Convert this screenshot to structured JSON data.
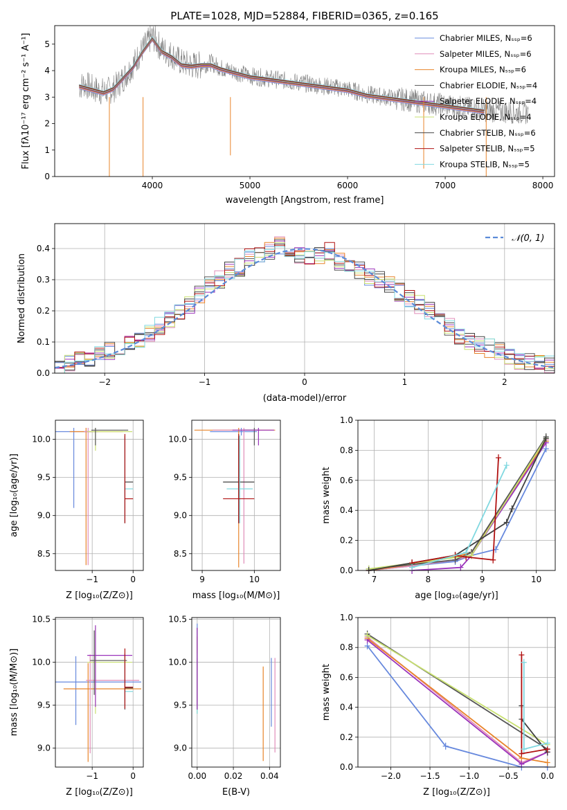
{
  "figure_title": "PLATE=1028, MJD=52884, FIBERID=0365, z=0.165",
  "colors": {
    "chabrier_miles": "#6688dd",
    "salpeter_miles": "#e08cb8",
    "kroupa_miles": "#e8842a",
    "chabrier_elodie": "#555555",
    "salpeter_elodie": "#9a33bb",
    "kroupa_elodie": "#c8e070",
    "chabrier_stelib": "#404040",
    "salpeter_stelib": "#b01010",
    "kroupa_stelib": "#80d8e0",
    "observed": "#808080",
    "gaussian": "#5b8bd8"
  },
  "chart_data": [
    {
      "id": "spectrum",
      "type": "line",
      "title": "PLATE=1028, MJD=52884, FIBERID=0365, z=0.165",
      "xlabel": "wavelength [Angstrom, rest frame]",
      "ylabel": "Flux [f_λ 10^-17 erg cm^-2 s^-1 A^-1]",
      "xlim": [
        3000,
        8120
      ],
      "ylim": [
        0,
        5.7
      ],
      "xticks": [
        4000,
        5000,
        6000,
        7000,
        8000
      ],
      "yticks": [
        0,
        1,
        2,
        3,
        4,
        5
      ],
      "legend_placement": "right",
      "legend": [
        "Chabrier MILES, N_SSP=6",
        "Salpeter MILES, N_SSP=6",
        "Kroupa MILES, N_SSP=6",
        "Chabrier ELODIE, N_SSP=4",
        "Salpeter ELODIE, N_SSP=4",
        "Kroupa ELODIE, N_SSP=4",
        "Chabrier STELIB, N_SSP=6",
        "Salpeter STELIB, N_SSP=5",
        "Kroupa STELIB, N_SSP=5"
      ],
      "observed_x": [
        3250,
        3300,
        3400,
        3500,
        3600,
        3700,
        3800,
        3900,
        4000,
        4100,
        4200,
        4300,
        4400,
        4500,
        4600,
        4700,
        4800,
        4900,
        5000,
        5200,
        5400,
        5600,
        5800,
        6000,
        6200,
        6400,
        6600,
        6800,
        7000,
        7200,
        7400,
        7600,
        7850
      ],
      "observed_y": [
        3.4,
        3.5,
        3.3,
        3.2,
        3.3,
        3.7,
        4.2,
        4.8,
        5.3,
        4.8,
        4.6,
        4.3,
        4.2,
        4.2,
        4.3,
        4.1,
        4.0,
        3.9,
        3.8,
        3.7,
        3.6,
        3.5,
        3.4,
        3.3,
        3.1,
        3.0,
        2.9,
        2.8,
        2.7,
        2.6,
        2.5,
        2.45,
        2.4
      ],
      "model_x": [
        3250,
        3300,
        3400,
        3500,
        3600,
        3700,
        3800,
        3900,
        4000,
        4100,
        4200,
        4300,
        4400,
        4500,
        4600,
        4700,
        4800,
        4900,
        5000,
        5200,
        5400,
        5600,
        5800,
        6000,
        6200,
        6400,
        6600,
        6800,
        7000,
        7200,
        7400
      ],
      "model_y": [
        3.4,
        3.35,
        3.25,
        3.15,
        3.3,
        3.7,
        4.1,
        4.7,
        5.2,
        4.7,
        4.5,
        4.2,
        4.15,
        4.2,
        4.2,
        4.05,
        3.95,
        3.85,
        3.75,
        3.65,
        3.55,
        3.45,
        3.35,
        3.25,
        3.05,
        2.95,
        2.85,
        2.75,
        2.65,
        2.55,
        2.45
      ]
    },
    {
      "id": "residuals",
      "type": "bar",
      "xlabel": "(data-model)/error",
      "ylabel": "Normed distribution",
      "xlim": [
        -2.5,
        2.5
      ],
      "ylim": [
        0,
        0.48
      ],
      "xticks": [
        -2,
        -1,
        0,
        1,
        2
      ],
      "yticks": [
        0.0,
        0.1,
        0.2,
        0.3,
        0.4
      ],
      "legend_placement": "top-right",
      "gaussian_label": "𝒩(0, 1)",
      "bin_width": 0.1,
      "x": [
        -2.5,
        -2.4,
        -2.3,
        -2.2,
        -2.1,
        -2.0,
        -1.9,
        -1.8,
        -1.7,
        -1.6,
        -1.5,
        -1.4,
        -1.3,
        -1.2,
        -1.1,
        -1.0,
        -0.9,
        -0.8,
        -0.7,
        -0.6,
        -0.5,
        -0.4,
        -0.3,
        -0.2,
        -0.1,
        0.0,
        0.1,
        0.2,
        0.3,
        0.4,
        0.5,
        0.6,
        0.7,
        0.8,
        0.9,
        1.0,
        1.1,
        1.2,
        1.3,
        1.4,
        1.5,
        1.6,
        1.7,
        1.8,
        1.9,
        2.0,
        2.1,
        2.2,
        2.3,
        2.4
      ],
      "y": [
        0.025,
        0.03,
        0.04,
        0.05,
        0.06,
        0.07,
        0.08,
        0.09,
        0.11,
        0.13,
        0.15,
        0.17,
        0.19,
        0.22,
        0.25,
        0.28,
        0.3,
        0.33,
        0.34,
        0.37,
        0.38,
        0.39,
        0.41,
        0.4,
        0.38,
        0.37,
        0.38,
        0.39,
        0.36,
        0.34,
        0.33,
        0.31,
        0.3,
        0.28,
        0.26,
        0.24,
        0.22,
        0.2,
        0.17,
        0.15,
        0.12,
        0.1,
        0.09,
        0.08,
        0.07,
        0.05,
        0.04,
        0.035,
        0.03,
        0.03
      ]
    },
    {
      "id": "age-vs-Z",
      "type": "scatter",
      "xlabel": "Z [log10(Z/Z⊙)]",
      "ylabel": "age [log10(age/yr)]",
      "xlim": [
        -1.9,
        0.25
      ],
      "ylim": [
        8.28,
        10.25
      ],
      "xticks": [
        -1,
        0
      ],
      "yticks": [
        8.5,
        9.0,
        9.5,
        10.0
      ],
      "points": [
        {
          "x": -1.45,
          "y": 10.1,
          "xerr": [
            0.5,
            0.6
          ],
          "yerr": [
            1.0,
            0.05
          ],
          "series": "chabrier_miles"
        },
        {
          "x": -1.15,
          "y": 10.1,
          "xerr": [
            0.4,
            0.9
          ],
          "yerr": [
            1.75,
            0.05
          ],
          "series": "kroupa_miles"
        },
        {
          "x": -1.1,
          "y": 10.1,
          "xerr": [
            0.1,
            0.1
          ],
          "yerr": [
            1.75,
            0.05
          ],
          "series": "salpeter_miles"
        },
        {
          "x": -0.92,
          "y": 10.1,
          "xerr": [
            0.2,
            0.9
          ],
          "yerr": [
            0.25,
            0.05
          ],
          "series": "kroupa_elodie"
        },
        {
          "x": -0.92,
          "y": 10.12,
          "xerr": [
            0.1,
            0.8
          ],
          "yerr": [
            0.2,
            0.03
          ],
          "series": "chabrier_elodie"
        },
        {
          "x": -0.2,
          "y": 9.44,
          "xerr": [
            0.0,
            0.2
          ],
          "yerr": [
            0.54,
            0.6
          ],
          "series": "chabrier_stelib"
        },
        {
          "x": -0.2,
          "y": 9.35,
          "xerr": [
            0.0,
            0.2
          ],
          "yerr": [
            0.45,
            0.7
          ],
          "series": "kroupa_stelib"
        },
        {
          "x": -0.2,
          "y": 9.22,
          "xerr": [
            0.0,
            0.2
          ],
          "yerr": [
            0.32,
            0.85
          ],
          "series": "salpeter_stelib"
        }
      ]
    },
    {
      "id": "age-vs-mass",
      "type": "scatter",
      "xlabel": "mass [log10(M/M⊙)]",
      "ylabel": "",
      "xlim": [
        8.8,
        10.5
      ],
      "ylim": [
        8.28,
        10.25
      ],
      "xticks": [
        9,
        10
      ],
      "yticks": [
        8.5,
        9.0,
        9.5,
        10.0
      ],
      "points": [
        {
          "x": 9.75,
          "y": 10.1,
          "xerr": [
            0.6,
            0.3
          ],
          "yerr": [
            0.05,
            0.05
          ],
          "series": "chabrier_miles"
        },
        {
          "x": 9.7,
          "y": 10.12,
          "xerr": [
            0.85,
            0.7
          ],
          "yerr": [
            1.8,
            0.03
          ],
          "series": "kroupa_miles"
        },
        {
          "x": 9.8,
          "y": 10.12,
          "xerr": [
            0.6,
            0.3
          ],
          "yerr": [
            1.75,
            0.03
          ],
          "series": "salpeter_miles"
        },
        {
          "x": 10.0,
          "y": 10.12,
          "xerr": [
            0.2,
            0.1
          ],
          "yerr": [
            0.2,
            0.03
          ],
          "series": "chabrier_elodie"
        },
        {
          "x": 10.08,
          "y": 10.12,
          "xerr": [
            0.5,
            0.3
          ],
          "yerr": [
            0.2,
            0.03
          ],
          "series": "salpeter_elodie"
        },
        {
          "x": 9.7,
          "y": 9.44,
          "xerr": [
            0.3,
            0.3
          ],
          "yerr": [
            0.54,
            0.6
          ],
          "series": "chabrier_stelib"
        },
        {
          "x": 9.72,
          "y": 9.35,
          "xerr": [
            0.25,
            0.25
          ],
          "yerr": [
            0.45,
            0.7
          ],
          "series": "kroupa_stelib"
        },
        {
          "x": 9.7,
          "y": 9.22,
          "xerr": [
            0.3,
            0.3
          ],
          "yerr": [
            0.32,
            0.85
          ],
          "series": "salpeter_stelib"
        }
      ]
    },
    {
      "id": "massweight-vs-age",
      "type": "line",
      "xlabel": "age [log10(age/yr)]",
      "ylabel": "mass weight",
      "xlim": [
        6.7,
        10.35
      ],
      "ylim": [
        0,
        1.0
      ],
      "xticks": [
        7,
        8,
        9,
        10
      ],
      "yticks": [
        0.0,
        0.2,
        0.4,
        0.6,
        0.8,
        1.0
      ],
      "series": [
        {
          "key": "chabrier_miles",
          "x": [
            6.9,
            7.7,
            8.5,
            8.8,
            9.25,
            10.18
          ],
          "y": [
            0.0,
            0.03,
            0.06,
            0.1,
            0.14,
            0.81
          ]
        },
        {
          "key": "salpeter_miles",
          "x": [
            6.9,
            7.7,
            8.5,
            8.8,
            10.18
          ],
          "y": [
            0.0,
            0.03,
            0.07,
            0.1,
            0.87
          ]
        },
        {
          "key": "kroupa_miles",
          "x": [
            6.9,
            7.7,
            8.5,
            8.8,
            10.18
          ],
          "y": [
            0.0,
            0.04,
            0.09,
            0.12,
            0.86
          ]
        },
        {
          "key": "chabrier_elodie",
          "x": [
            6.9,
            8.5,
            8.8,
            10.18
          ],
          "y": [
            0.01,
            0.07,
            0.12,
            0.89
          ]
        },
        {
          "key": "salpeter_elodie",
          "x": [
            7.7,
            8.6,
            8.8,
            10.18
          ],
          "y": [
            0.0,
            0.02,
            0.1,
            0.85
          ]
        },
        {
          "key": "kroupa_elodie",
          "x": [
            6.9,
            8.8,
            10.18
          ],
          "y": [
            0.01,
            0.1,
            0.88
          ]
        },
        {
          "key": "chabrier_stelib",
          "x": [
            6.9,
            7.7,
            8.5,
            9.45,
            9.55,
            10.18
          ],
          "y": [
            0.0,
            0.05,
            0.1,
            0.32,
            0.41,
            0.88
          ]
        },
        {
          "key": "salpeter_stelib",
          "x": [
            7.7,
            8.5,
            8.7,
            9.2,
            9.3
          ],
          "y": [
            0.05,
            0.1,
            0.09,
            0.07,
            0.75
          ]
        },
        {
          "key": "kroupa_stelib",
          "x": [
            7.7,
            8.7,
            9.45
          ],
          "y": [
            0.02,
            0.12,
            0.7
          ]
        }
      ]
    },
    {
      "id": "mass-vs-Z",
      "type": "scatter",
      "xlabel": "Z [log10(Z/Z⊙)]",
      "ylabel": "mass [log10(M/M⊙)]",
      "xlim": [
        -1.9,
        0.25
      ],
      "ylim": [
        8.78,
        10.52
      ],
      "xticks": [
        -1,
        0
      ],
      "yticks": [
        9.0,
        9.5,
        10.0,
        10.5
      ],
      "points": [
        {
          "x": -1.4,
          "y": 9.77,
          "xerr": [
            0.5,
            1.6
          ],
          "yerr": [
            0.5,
            0.3
          ],
          "series": "chabrier_miles"
        },
        {
          "x": -1.1,
          "y": 9.69,
          "xerr": [
            0.6,
            1.3
          ],
          "yerr": [
            0.85,
            0.3
          ],
          "series": "kroupa_miles"
        },
        {
          "x": -1.05,
          "y": 9.79,
          "xerr": [
            0.1,
            1.2
          ],
          "yerr": [
            0.85,
            0.3
          ],
          "series": "salpeter_miles"
        },
        {
          "x": -0.92,
          "y": 10.0,
          "xerr": [
            0.2,
            0.9
          ],
          "yerr": [
            0.6,
            0.4
          ],
          "series": "kroupa_elodie"
        },
        {
          "x": -0.92,
          "y": 10.08,
          "xerr": [
            0.2,
            0.9
          ],
          "yerr": [
            0.6,
            0.35
          ],
          "series": "salpeter_elodie"
        },
        {
          "x": -0.95,
          "y": 10.02,
          "xerr": [
            0.1,
            0.8
          ],
          "yerr": [
            0.4,
            0.35
          ],
          "series": "chabrier_elodie"
        },
        {
          "x": -0.2,
          "y": 9.7,
          "xerr": [
            0.0,
            0.2
          ],
          "yerr": [
            0.25,
            0.4
          ],
          "series": "chabrier_stelib"
        },
        {
          "x": -0.2,
          "y": 9.66,
          "xerr": [
            0.0,
            0.2
          ],
          "yerr": [
            0.2,
            0.4
          ],
          "series": "kroupa_stelib"
        },
        {
          "x": -0.2,
          "y": 9.71,
          "xerr": [
            0.0,
            0.2
          ],
          "yerr": [
            0.25,
            0.45
          ],
          "series": "salpeter_stelib"
        }
      ]
    },
    {
      "id": "mass-vs-EBV",
      "type": "scatter",
      "xlabel": "E(B-V)",
      "ylabel": "",
      "xlim": [
        -0.003,
        0.046
      ],
      "ylim": [
        8.78,
        10.52
      ],
      "xticks": [
        0.0,
        0.02,
        0.04
      ],
      "xtick_labels": [
        "0.00",
        "0.02",
        "0.04"
      ],
      "yticks": [
        9.0,
        9.5,
        10.0,
        10.5
      ],
      "points": [
        {
          "x": 0.0,
          "y": 10.0,
          "yerr": [
            0.6,
            0.45
          ],
          "series": "chabrier_miles"
        },
        {
          "x": 0.0,
          "y": 9.9,
          "yerr": [
            0.5,
            0.4
          ],
          "series": "kroupa_elodie"
        },
        {
          "x": 0.0,
          "y": 10.0,
          "yerr": [
            0.5,
            0.3
          ],
          "series": "salpeter_stelib"
        },
        {
          "x": 0.0,
          "y": 9.8,
          "yerr": [
            0.4,
            0.3
          ],
          "series": "kroupa_stelib"
        },
        {
          "x": 0.0,
          "y": 9.7,
          "yerr": [
            0.25,
            0.35
          ],
          "series": "chabrier_stelib"
        },
        {
          "x": 0.0,
          "y": 10.1,
          "yerr": [
            0.6,
            0.3
          ],
          "series": "chabrier_elodie"
        },
        {
          "x": 0.0,
          "y": 10.05,
          "yerr": [
            0.6,
            0.35
          ],
          "series": "salpeter_elodie"
        },
        {
          "x": 0.0365,
          "y": 9.4,
          "yerr": [
            0.55,
            0.55
          ],
          "series": "kroupa_miles"
        },
        {
          "x": 0.041,
          "y": 9.65,
          "yerr": [
            0.4,
            0.4
          ],
          "series": "chabrier_miles"
        },
        {
          "x": 0.043,
          "y": 9.5,
          "yerr": [
            0.55,
            0.55
          ],
          "series": "salpeter_miles"
        }
      ]
    },
    {
      "id": "massweight-vs-Z",
      "type": "line",
      "xlabel": "Z [log10(Z/Z⊙)]",
      "ylabel": "mass weight",
      "xlim": [
        -2.42,
        0.1
      ],
      "ylim": [
        0,
        1.0
      ],
      "xticks": [
        -2.0,
        -1.5,
        -1.0,
        -0.5,
        0.0
      ],
      "yticks": [
        0.0,
        0.2,
        0.4,
        0.6,
        0.8,
        1.0
      ],
      "series": [
        {
          "key": "chabrier_miles",
          "x": [
            -2.3,
            -1.3,
            -0.33,
            0.0
          ],
          "y": [
            0.81,
            0.14,
            0.0,
            0.0
          ]
        },
        {
          "key": "salpeter_miles",
          "x": [
            -2.3,
            -0.33,
            0.0
          ],
          "y": [
            0.87,
            0.03,
            0.1
          ]
        },
        {
          "key": "kroupa_miles",
          "x": [
            -2.3,
            -0.33,
            0.0
          ],
          "y": [
            0.86,
            0.06,
            0.03
          ]
        },
        {
          "key": "chabrier_elodie",
          "x": [
            -2.3,
            0.0
          ],
          "y": [
            0.89,
            0.12
          ]
        },
        {
          "key": "salpeter_elodie",
          "x": [
            -2.3,
            -0.33,
            0.0
          ],
          "y": [
            0.85,
            0.02,
            0.1
          ]
        },
        {
          "key": "kroupa_elodie",
          "x": [
            -2.3,
            0.0
          ],
          "y": [
            0.88,
            0.15
          ]
        },
        {
          "key": "chabrier_stelib",
          "x": [
            -0.33,
            -0.33,
            0.0
          ],
          "y": [
            0.41,
            0.32,
            0.1
          ]
        },
        {
          "key": "salpeter_stelib",
          "x": [
            -0.33,
            -0.33,
            0.0
          ],
          "y": [
            0.75,
            0.09,
            0.12
          ]
        },
        {
          "key": "kroupa_stelib",
          "x": [
            -0.3,
            -0.3,
            0.0
          ],
          "y": [
            0.7,
            0.12,
            0.16
          ]
        }
      ]
    }
  ]
}
